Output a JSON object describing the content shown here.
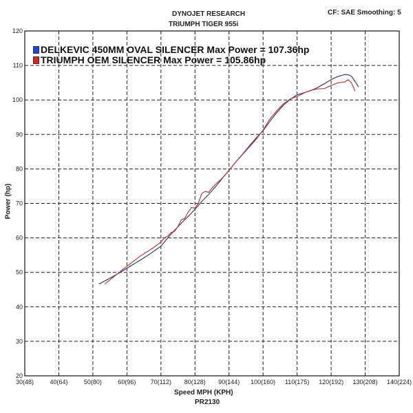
{
  "header": {
    "title": "DYNOJET RESEARCH",
    "subtitle": "TRIUMPH TIGER 955i",
    "cf_info": "CF: SAE  Smoothing: 5"
  },
  "footer": {
    "xlabel": "Speed MPH (KPH)",
    "code": "PR2130"
  },
  "colors": {
    "series1": "#3a3a7a",
    "series2": "#b83a3a",
    "grid": "#222222",
    "swatch1": "#2244dd",
    "swatch2": "#dd2222"
  },
  "chart_data": {
    "type": "line",
    "title": "DYNOJET RESEARCH",
    "subtitle": "TRIUMPH TIGER 955i",
    "xlabel": "Speed MPH (KPH)",
    "ylabel": "Power (hp)",
    "xlim": [
      30,
      140
    ],
    "ylim": [
      20,
      120
    ],
    "grid": true,
    "legend_position": "top-left",
    "x_ticks": [
      "30(48)",
      "40(64)",
      "50(80)",
      "60(96)",
      "70(112)",
      "80(128)",
      "90(144)",
      "100(160)",
      "110(175)",
      "120(192)",
      "130(208)",
      "140(224)"
    ],
    "y_ticks": [
      "20",
      "30",
      "40",
      "50",
      "60",
      "70",
      "80",
      "90",
      "100",
      "110",
      "120"
    ],
    "series": [
      {
        "name": "DELKEVIC 450MM OVAL SILENCER Max Power = 107.36hp",
        "x": [
          51.8,
          55,
          58,
          61,
          64,
          67,
          70,
          72,
          74,
          76,
          78,
          80,
          82,
          84,
          86,
          88,
          90,
          92,
          94,
          96,
          98,
          100,
          102,
          104,
          106,
          108,
          110,
          112,
          114,
          116,
          118,
          120,
          122,
          124,
          125,
          126,
          127,
          128
        ],
        "y": [
          46.6,
          48.3,
          50.0,
          51.8,
          53.6,
          55.5,
          57.6,
          60.0,
          62.2,
          64.3,
          66.2,
          68.3,
          70.6,
          72.6,
          74.8,
          77.2,
          79.6,
          82.0,
          84.3,
          86.7,
          89.0,
          91.1,
          93.8,
          96.3,
          98.5,
          100.2,
          101.5,
          102.1,
          102.7,
          103.6,
          104.7,
          105.9,
          106.8,
          107.36,
          107.3,
          106.8,
          105.4,
          103.8
        ]
      },
      {
        "name": "TRIUMPH OEM SILENCER Max Power = 105.86hp",
        "x": [
          53.5,
          56,
          59,
          62,
          64,
          66,
          68,
          70,
          71,
          72,
          73,
          74,
          75,
          76,
          77,
          78,
          79,
          80,
          81,
          82,
          83,
          84,
          85,
          86,
          88,
          90,
          92,
          94,
          96,
          98,
          100,
          102,
          104,
          106,
          108,
          110,
          112,
          114,
          116,
          118,
          120,
          122,
          124,
          125,
          126,
          127
        ],
        "y": [
          46.6,
          48.6,
          51.0,
          53.3,
          54.8,
          56.0,
          57.3,
          58.8,
          60.0,
          60.5,
          61.6,
          61.9,
          63.3,
          65.3,
          65.6,
          67.5,
          68.8,
          68.6,
          70.1,
          72.9,
          73.5,
          73.2,
          74.5,
          75.5,
          77.3,
          79.6,
          82.0,
          84.2,
          86.4,
          88.6,
          91.3,
          94.5,
          96.8,
          98.9,
          100.3,
          101.0,
          102.0,
          102.8,
          103.2,
          103.3,
          104.2,
          105.0,
          105.2,
          105.86,
          104.9,
          102.6
        ]
      }
    ]
  }
}
